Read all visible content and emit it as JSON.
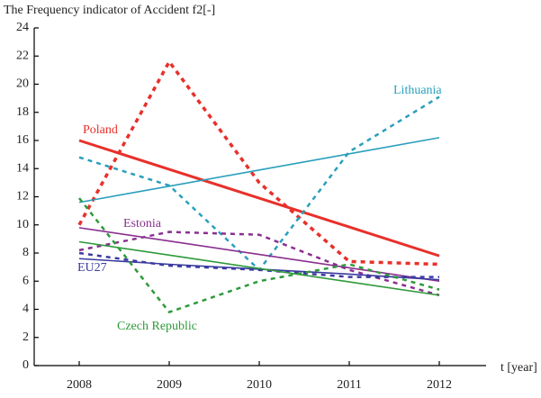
{
  "chart_data": {
    "type": "line",
    "y_label": "The Frequency indicator of Accident f2[-]",
    "x_label": "t [year]",
    "categories": [
      "2008",
      "2009",
      "2010",
      "2011",
      "2012"
    ],
    "ylim": [
      0,
      24
    ],
    "yticks": [
      0,
      2,
      4,
      6,
      8,
      10,
      12,
      14,
      16,
      18,
      20,
      22,
      24
    ],
    "series": [
      {
        "name": "Poland",
        "color": "#e8302a",
        "values": [
          10,
          21.6,
          13,
          7.4,
          7.2
        ],
        "trend": [
          16,
          13.95,
          11.9,
          9.85,
          7.8
        ]
      },
      {
        "name": "Lithuania",
        "color": "#2a9fbc",
        "values": [
          14.8,
          12.8,
          6.8,
          15.2,
          19.1
        ],
        "trend": [
          11.6,
          12.75,
          13.9,
          15.05,
          16.2
        ]
      },
      {
        "name": "Estonia",
        "color": "#8a2f8f",
        "values": [
          8.2,
          9.5,
          9.3,
          6.8,
          5.0
        ],
        "trend": [
          9.8,
          8.85,
          7.9,
          6.95,
          6.0
        ]
      },
      {
        "name": "EU27",
        "color": "#3a3aa0",
        "values": [
          8.0,
          7.1,
          6.8,
          6.3,
          6.3
        ],
        "trend": [
          7.6,
          7.2,
          6.85,
          6.5,
          6.1
        ]
      },
      {
        "name": "Czech Republic",
        "color": "#2e9a3a",
        "values": [
          11.9,
          3.8,
          6.0,
          7.2,
          5.4
        ],
        "trend": [
          8.8,
          7.85,
          6.9,
          5.95,
          5.0
        ]
      }
    ]
  }
}
